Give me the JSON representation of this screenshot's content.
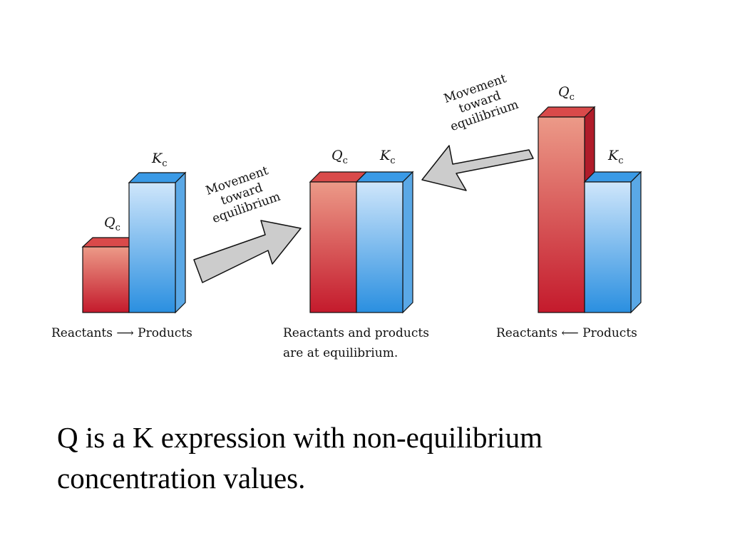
{
  "colors": {
    "reactant_dark": "#c41a2c",
    "reactant_light": "#ec9a88",
    "product_dark": "#2a8fe0",
    "product_light": "#cfe6fb",
    "arrow_fill": "#cccccc"
  },
  "panels": [
    {
      "q_label": {
        "main": "Q",
        "sub": "c"
      },
      "k_label": {
        "main": "K",
        "sub": "c"
      },
      "caption_lines": [
        "Reactants ⟶ Products"
      ]
    },
    {
      "q_label": {
        "main": "Q",
        "sub": "c"
      },
      "k_label": {
        "main": "K",
        "sub": "c"
      },
      "caption_lines": [
        "Reactants and products",
        "are at equilibrium."
      ]
    },
    {
      "q_label": {
        "main": "Q",
        "sub": "c"
      },
      "k_label": {
        "main": "K",
        "sub": "c"
      },
      "caption_lines": [
        "Reactants ⟵ Products"
      ]
    }
  ],
  "arrows": [
    {
      "lines": [
        "Movement",
        "toward",
        "equilibrium"
      ]
    },
    {
      "lines": [
        "Movement",
        "toward",
        "equilibrium"
      ]
    }
  ],
  "slide_text": {
    "line1": "Q is a K expression with non-equilibrium",
    "line2": "concentration values."
  }
}
